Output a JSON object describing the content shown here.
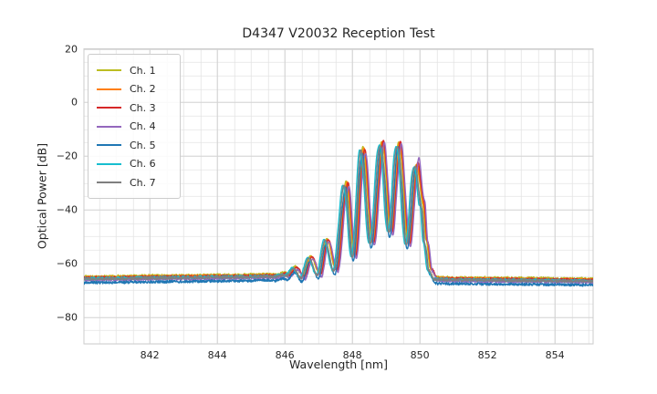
{
  "title": "D4347 V20032 Reception Test",
  "axes": {
    "xlabel": "Wavelength [nm]",
    "ylabel": "Optical Power [dB]",
    "x_tick_values": [
      842,
      844,
      846,
      848,
      850,
      852,
      854
    ],
    "x_tick_labels": [
      "842",
      "844",
      "846",
      "848",
      "850",
      "852",
      "854"
    ],
    "y_tick_values": [
      20,
      0,
      -20,
      -40,
      -60,
      -80
    ],
    "y_tick_labels": [
      "20",
      "0",
      "−20",
      "−40",
      "−60",
      "−80"
    ]
  },
  "legend": {
    "entries": [
      {
        "label": "Ch. 1",
        "color": "#bcbd22"
      },
      {
        "label": "Ch. 2",
        "color": "#ff7f0e"
      },
      {
        "label": "Ch. 3",
        "color": "#d62728"
      },
      {
        "label": "Ch. 4",
        "color": "#9467bd"
      },
      {
        "label": "Ch. 5",
        "color": "#1f77b4"
      },
      {
        "label": "Ch. 6",
        "color": "#17becf"
      },
      {
        "label": "Ch. 7",
        "color": "#7f7f7f"
      }
    ]
  },
  "colors": {
    "background": "#ffffff",
    "text": "#262626",
    "grid_major": "#d4d4d4",
    "grid_minor": "#e3e3e3",
    "spine": "#d0d0d0"
  },
  "chart_data": {
    "type": "line",
    "title": "D4347 V20032 Reception Test",
    "xlabel": "Wavelength [nm]",
    "ylabel": "Optical Power [dB]",
    "xlim": [
      840.05,
      855.13
    ],
    "ylim": [
      -90,
      20
    ],
    "x_major_step": 2,
    "x_minor_step": 0.5,
    "y_major_step": 20,
    "y_minor_step": 5,
    "grid": true,
    "legend_position": "upper left",
    "sample_step_nm": 0.01,
    "line_width": 1.4,
    "noise_db_baseline": 0.45,
    "noise_db_peaks": 0.2,
    "peak_jitter_db": 0.9,
    "last_peak_center": 849.9,
    "last_peak_width": 0.13,
    "base_curve": [
      [
        840.05,
        -65.6
      ],
      [
        841.0,
        -65.5
      ],
      [
        842.0,
        -65.3
      ],
      [
        843.0,
        -65.2
      ],
      [
        844.0,
        -65.0
      ],
      [
        845.0,
        -64.9
      ],
      [
        845.5,
        -64.7
      ],
      [
        845.7,
        -64.9
      ],
      [
        845.95,
        -64.1
      ],
      [
        846.05,
        -64.6
      ],
      [
        846.28,
        -61.8
      ],
      [
        846.5,
        -65.2
      ],
      [
        846.73,
        -57.8
      ],
      [
        846.99,
        -64.2
      ],
      [
        847.21,
        -51.3
      ],
      [
        847.47,
        -62.6
      ],
      [
        847.79,
        -30.8
      ],
      [
        848.02,
        -57.5
      ],
      [
        848.28,
        -18.0
      ],
      [
        848.55,
        -52.5
      ],
      [
        848.85,
        -15.2
      ],
      [
        849.1,
        -48.5
      ],
      [
        849.35,
        -15.6
      ],
      [
        849.62,
        -53.0
      ],
      [
        849.87,
        -24.0
      ],
      [
        850.05,
        -38.0
      ],
      [
        850.15,
        -52.0
      ],
      [
        850.28,
        -62.5
      ],
      [
        850.45,
        -65.9
      ],
      [
        851.0,
        -66.0
      ],
      [
        852.0,
        -66.1
      ],
      [
        853.0,
        -66.2
      ],
      [
        854.0,
        -66.3
      ],
      [
        855.15,
        -66.45
      ]
    ],
    "series": [
      {
        "name": "Ch. 1",
        "color": "#bcbd22",
        "dx": 0.03,
        "dy": 0.7,
        "last_peak_boost": 0.3,
        "seed": 11
      },
      {
        "name": "Ch. 2",
        "color": "#ff7f0e",
        "dx": 0.055,
        "dy": 0.35,
        "last_peak_boost": 0.2,
        "seed": 22
      },
      {
        "name": "Ch. 3",
        "color": "#d62728",
        "dx": 0.075,
        "dy": 0.25,
        "last_peak_boost": 0.8,
        "seed": 33
      },
      {
        "name": "Ch. 4",
        "color": "#9467bd",
        "dx": 0.095,
        "dy": -0.6,
        "last_peak_boost": 3.2,
        "seed": 44
      },
      {
        "name": "Ch. 5",
        "color": "#1f77b4",
        "dx": 0.005,
        "dy": -1.6,
        "last_peak_boost": 0.0,
        "seed": 55
      },
      {
        "name": "Ch. 6",
        "color": "#17becf",
        "dx": -0.055,
        "dy": 0.0,
        "last_peak_boost": 0.6,
        "seed": 66
      },
      {
        "name": "Ch. 7",
        "color": "#7f7f7f",
        "dx": -0.02,
        "dy": -0.2,
        "last_peak_boost": 1.2,
        "seed": 77
      }
    ]
  }
}
